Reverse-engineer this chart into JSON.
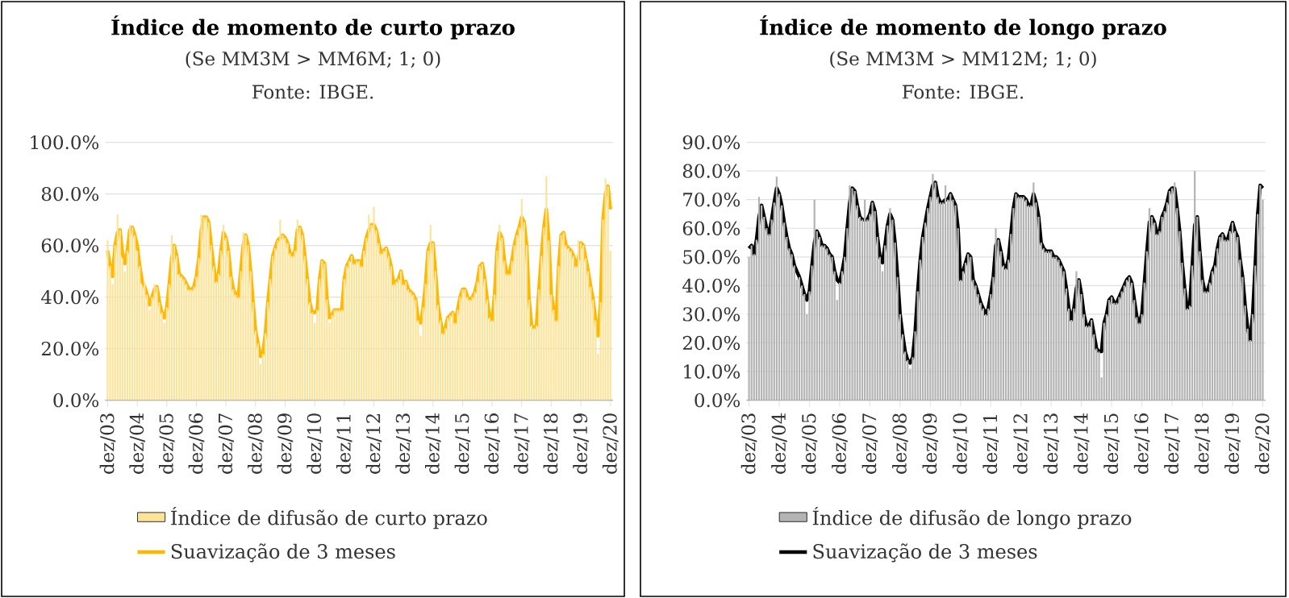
{
  "chart_data": [
    {
      "type": "bar",
      "title": "Índice de momento de curto prazo",
      "subtitle": "(Se MM3M > MM6M; 1; 0)",
      "annotations": [
        "Fonte: IBGE."
      ],
      "categories": [
        "dez/03",
        null,
        null,
        null,
        null,
        null,
        null,
        null,
        null,
        null,
        null,
        null,
        "dez/04",
        null,
        null,
        null,
        null,
        null,
        null,
        null,
        null,
        null,
        null,
        null,
        "dez/05",
        null,
        null,
        null,
        null,
        null,
        null,
        null,
        null,
        null,
        null,
        null,
        "dez/06",
        null,
        null,
        null,
        null,
        null,
        null,
        null,
        null,
        null,
        null,
        null,
        "dez/07",
        null,
        null,
        null,
        null,
        null,
        null,
        null,
        null,
        null,
        null,
        null,
        "dez/08",
        null,
        null,
        null,
        null,
        null,
        null,
        null,
        null,
        null,
        null,
        null,
        "dez/09",
        null,
        null,
        null,
        null,
        null,
        null,
        null,
        null,
        null,
        null,
        null,
        "dez/10",
        null,
        null,
        null,
        null,
        null,
        null,
        null,
        null,
        null,
        null,
        null,
        "dez/11",
        null,
        null,
        null,
        null,
        null,
        null,
        null,
        null,
        null,
        null,
        null,
        "dez/12",
        null,
        null,
        null,
        null,
        null,
        null,
        null,
        null,
        null,
        null,
        null,
        "dez/13",
        null,
        null,
        null,
        null,
        null,
        null,
        null,
        null,
        null,
        null,
        null,
        "dez/14",
        null,
        null,
        null,
        null,
        null,
        null,
        null,
        null,
        null,
        null,
        null,
        "dez/15",
        null,
        null,
        null,
        null,
        null,
        null,
        null,
        null,
        null,
        null,
        null,
        "dez/16",
        null,
        null,
        null,
        null,
        null,
        null,
        null,
        null,
        null,
        null,
        null,
        "dez/17",
        null,
        null,
        null,
        null,
        null,
        null,
        null,
        null,
        null,
        null,
        null,
        "dez/18",
        null,
        null,
        null,
        null,
        null,
        null,
        null,
        null,
        null,
        null,
        null,
        "dez/19",
        null,
        null,
        null,
        null,
        null,
        null,
        null,
        null,
        null,
        null,
        null,
        "dez/20"
      ],
      "series": [
        {
          "name": "Índice de difusão de curto prazo",
          "color": "#fde39a",
          "values": [
            62,
            52,
            45,
            60,
            72,
            66,
            55,
            50,
            58,
            68,
            67,
            64,
            58,
            52,
            44,
            46,
            41,
            35,
            40,
            45,
            44,
            38,
            34,
            30,
            36,
            45,
            64,
            60,
            56,
            49,
            48,
            47,
            45,
            43,
            43,
            44,
            48,
            55,
            72,
            71,
            71,
            69,
            60,
            52,
            46,
            49,
            58,
            68,
            63,
            58,
            48,
            43,
            41,
            40,
            50,
            65,
            64,
            60,
            50,
            38,
            27,
            22,
            14,
            18,
            26,
            38,
            47,
            56,
            59,
            62,
            70,
            64,
            63,
            61,
            57,
            56,
            58,
            70,
            67,
            64,
            56,
            47,
            38,
            34,
            30,
            35,
            47,
            54,
            53,
            39,
            30,
            33,
            35,
            35,
            35,
            35,
            47,
            52,
            54,
            56,
            53,
            54,
            54,
            52,
            58,
            63,
            72,
            68,
            75,
            66,
            61,
            57,
            58,
            59,
            56,
            52,
            45,
            46,
            47,
            50,
            45,
            46,
            43,
            42,
            41,
            39,
            31,
            25,
            36,
            45,
            58,
            68,
            61,
            50,
            37,
            31,
            26,
            28,
            32,
            33,
            34,
            30,
            35,
            40,
            43,
            43,
            40,
            39,
            40,
            42,
            46,
            52,
            53,
            47,
            39,
            32,
            31,
            41,
            58,
            68,
            63,
            54,
            49,
            49,
            54,
            60,
            64,
            67,
            78,
            69,
            60,
            39,
            29,
            28,
            29,
            43,
            56,
            67,
            87,
            62,
            41,
            35,
            31,
            52,
            64,
            65,
            60,
            59,
            58,
            56,
            52,
            62,
            61,
            60,
            55,
            50,
            44,
            39,
            31,
            18,
            38,
            70,
            86,
            83,
            58
          ]
        },
        {
          "name": "Suavização de 3 meses",
          "type": "line",
          "color": "#ffb800",
          "values": [
            58,
            52,
            48,
            60,
            65,
            66,
            57,
            53,
            58,
            66,
            67,
            64,
            60,
            52,
            46,
            44,
            41,
            37,
            40,
            43,
            44,
            38,
            34,
            32,
            36,
            45,
            55,
            60,
            56,
            49,
            48,
            47,
            45,
            43,
            43,
            44,
            48,
            55,
            66,
            71,
            71,
            69,
            60,
            52,
            46,
            49,
            58,
            65,
            63,
            58,
            48,
            43,
            41,
            40,
            50,
            60,
            64,
            60,
            50,
            38,
            27,
            22,
            17,
            18,
            26,
            38,
            47,
            56,
            59,
            62,
            63,
            64,
            63,
            61,
            57,
            56,
            58,
            66,
            67,
            64,
            56,
            47,
            38,
            34,
            34,
            35,
            47,
            54,
            53,
            39,
            32,
            33,
            35,
            35,
            35,
            35,
            47,
            52,
            54,
            56,
            53,
            54,
            54,
            52,
            58,
            63,
            66,
            68,
            68,
            66,
            61,
            57,
            58,
            59,
            56,
            52,
            45,
            46,
            47,
            50,
            45,
            46,
            43,
            42,
            41,
            39,
            31,
            30,
            36,
            45,
            58,
            61,
            61,
            50,
            37,
            31,
            26,
            28,
            32,
            33,
            34,
            30,
            35,
            40,
            43,
            43,
            40,
            39,
            40,
            42,
            46,
            52,
            53,
            47,
            39,
            32,
            31,
            41,
            58,
            65,
            63,
            54,
            49,
            49,
            54,
            60,
            64,
            67,
            71,
            69,
            60,
            39,
            29,
            28,
            29,
            43,
            56,
            67,
            74,
            62,
            41,
            35,
            31,
            52,
            64,
            65,
            60,
            59,
            58,
            56,
            52,
            55,
            61,
            60,
            55,
            50,
            44,
            39,
            31,
            25,
            38,
            70,
            80,
            83,
            74
          ]
        }
      ],
      "ylim": [
        0,
        100
      ],
      "yticks": [
        {
          "value": 0,
          "label": "0.0%"
        },
        {
          "value": 20,
          "label": "20.0%"
        },
        {
          "value": 40,
          "label": "40.0%"
        },
        {
          "value": 60,
          "label": "60.0%"
        },
        {
          "value": 80,
          "label": "80.0%"
        },
        {
          "value": 100,
          "label": "100.0%"
        }
      ],
      "grid": "y",
      "legend": "bottom",
      "marker": "none",
      "line_style": "solid"
    },
    {
      "type": "bar",
      "title": "Índice de momento de longo prazo",
      "subtitle": "(Se MM3M > MM12M; 1; 0)",
      "annotations": [
        "Fonte: IBGE."
      ],
      "categories": [
        "dez/03",
        null,
        null,
        null,
        null,
        null,
        null,
        null,
        null,
        null,
        null,
        null,
        "dez/04",
        null,
        null,
        null,
        null,
        null,
        null,
        null,
        null,
        null,
        null,
        null,
        "dez/05",
        null,
        null,
        null,
        null,
        null,
        null,
        null,
        null,
        null,
        null,
        null,
        "dez/06",
        null,
        null,
        null,
        null,
        null,
        null,
        null,
        null,
        null,
        null,
        null,
        "dez/07",
        null,
        null,
        null,
        null,
        null,
        null,
        null,
        null,
        null,
        null,
        null,
        "dez/08",
        null,
        null,
        null,
        null,
        null,
        null,
        null,
        null,
        null,
        null,
        null,
        "dez/09",
        null,
        null,
        null,
        null,
        null,
        null,
        null,
        null,
        null,
        null,
        null,
        "dez/10",
        null,
        null,
        null,
        null,
        null,
        null,
        null,
        null,
        null,
        null,
        null,
        "dez/11",
        null,
        null,
        null,
        null,
        null,
        null,
        null,
        null,
        null,
        null,
        null,
        "dez/12",
        null,
        null,
        null,
        null,
        null,
        null,
        null,
        null,
        null,
        null,
        null,
        "dez/13",
        null,
        null,
        null,
        null,
        null,
        null,
        null,
        null,
        null,
        null,
        null,
        "dez/14",
        null,
        null,
        null,
        null,
        null,
        null,
        null,
        null,
        null,
        null,
        null,
        "dez/15",
        null,
        null,
        null,
        null,
        null,
        null,
        null,
        null,
        null,
        null,
        null,
        "dez/16",
        null,
        null,
        null,
        null,
        null,
        null,
        null,
        null,
        null,
        null,
        null,
        "dez/17",
        null,
        null,
        null,
        null,
        null,
        null,
        null,
        null,
        null,
        null,
        null,
        "dez/18",
        null,
        null,
        null,
        null,
        null,
        null,
        null,
        null,
        null,
        null,
        null,
        "dez/19",
        null,
        null,
        null,
        null,
        null,
        null,
        null,
        null,
        null,
        null,
        null,
        "dez/20"
      ],
      "series": [
        {
          "name": "Índice de difusão de longo prazo",
          "color": "#b4b4b4",
          "values": [
            50,
            54,
            51,
            56,
            71,
            68,
            64,
            60,
            58,
            63,
            69,
            78,
            72,
            68,
            62,
            57,
            53,
            51,
            47,
            42,
            43,
            40,
            37,
            30,
            38,
            47,
            70,
            59,
            57,
            54,
            54,
            53,
            51,
            50,
            45,
            35,
            41,
            45,
            50,
            60,
            75,
            74,
            73,
            68,
            64,
            63,
            70,
            63,
            65,
            69,
            66,
            57,
            50,
            45,
            54,
            61,
            67,
            63,
            55,
            43,
            30,
            23,
            17,
            14,
            11,
            15,
            24,
            38,
            49,
            57,
            62,
            67,
            71,
            79,
            76,
            71,
            69,
            69,
            75,
            70,
            72,
            70,
            68,
            60,
            42,
            45,
            48,
            51,
            50,
            42,
            40,
            37,
            34,
            32,
            30,
            32,
            37,
            43,
            60,
            56,
            52,
            47,
            46,
            49,
            58,
            67,
            72,
            71,
            71,
            71,
            70,
            68,
            68,
            76,
            69,
            64,
            55,
            53,
            52,
            52,
            52,
            50,
            50,
            49,
            47,
            45,
            39,
            32,
            28,
            32,
            45,
            42,
            37,
            30,
            26,
            26,
            28,
            23,
            18,
            17,
            8,
            27,
            30,
            35,
            36,
            34,
            34,
            36,
            38,
            40,
            42,
            43,
            41,
            35,
            29,
            27,
            30,
            41,
            52,
            67,
            64,
            62,
            58,
            59,
            64,
            66,
            69,
            73,
            74,
            76,
            67,
            59,
            48,
            39,
            32,
            33,
            47,
            80,
            64,
            52,
            42,
            38,
            38,
            41,
            45,
            47,
            53,
            57,
            58,
            56,
            56,
            59,
            62,
            59,
            57,
            49,
            43,
            33,
            25,
            21,
            30,
            47,
            65,
            75,
            70
          ]
        },
        {
          "name": "Suavização de 3 meses",
          "type": "line",
          "color": "#000000",
          "values": [
            53,
            54,
            51,
            56,
            64,
            68,
            64,
            60,
            58,
            63,
            69,
            74,
            72,
            68,
            62,
            57,
            53,
            51,
            47,
            45,
            43,
            40,
            37,
            35,
            38,
            47,
            55,
            59,
            57,
            54,
            54,
            53,
            51,
            50,
            45,
            42,
            41,
            45,
            50,
            60,
            69,
            74,
            73,
            68,
            64,
            63,
            63,
            63,
            65,
            69,
            66,
            57,
            50,
            48,
            54,
            61,
            65,
            63,
            55,
            43,
            30,
            23,
            17,
            14,
            13,
            15,
            24,
            38,
            49,
            57,
            62,
            67,
            71,
            75,
            76,
            71,
            69,
            69,
            70,
            70,
            72,
            70,
            68,
            60,
            42,
            45,
            48,
            51,
            50,
            42,
            40,
            37,
            34,
            32,
            30,
            32,
            37,
            43,
            54,
            56,
            52,
            47,
            46,
            49,
            58,
            67,
            72,
            71,
            71,
            71,
            70,
            68,
            68,
            72,
            69,
            64,
            55,
            53,
            52,
            52,
            52,
            50,
            50,
            49,
            47,
            45,
            39,
            32,
            28,
            32,
            39,
            42,
            37,
            30,
            26,
            26,
            28,
            23,
            18,
            17,
            17,
            27,
            30,
            35,
            36,
            34,
            34,
            36,
            38,
            40,
            42,
            43,
            41,
            35,
            29,
            27,
            30,
            41,
            52,
            62,
            64,
            62,
            58,
            59,
            64,
            66,
            69,
            73,
            74,
            74,
            67,
            59,
            48,
            39,
            32,
            33,
            47,
            61,
            64,
            52,
            42,
            38,
            38,
            41,
            45,
            47,
            53,
            57,
            58,
            56,
            56,
            59,
            62,
            59,
            57,
            49,
            43,
            33,
            25,
            21,
            30,
            47,
            65,
            75,
            74
          ]
        }
      ],
      "ylim": [
        0,
        90
      ],
      "yticks": [
        {
          "value": 0,
          "label": "0.0%"
        },
        {
          "value": 10,
          "label": "10.0%"
        },
        {
          "value": 20,
          "label": "20.0%"
        },
        {
          "value": 30,
          "label": "30.0%"
        },
        {
          "value": 40,
          "label": "40.0%"
        },
        {
          "value": 50,
          "label": "50.0%"
        },
        {
          "value": 60,
          "label": "60.0%"
        },
        {
          "value": 70,
          "label": "70.0%"
        },
        {
          "value": 80,
          "label": "80.0%"
        },
        {
          "value": 90,
          "label": "90.0%"
        }
      ],
      "grid": "y",
      "legend": "bottom",
      "marker": "none",
      "line_style": "solid"
    }
  ]
}
